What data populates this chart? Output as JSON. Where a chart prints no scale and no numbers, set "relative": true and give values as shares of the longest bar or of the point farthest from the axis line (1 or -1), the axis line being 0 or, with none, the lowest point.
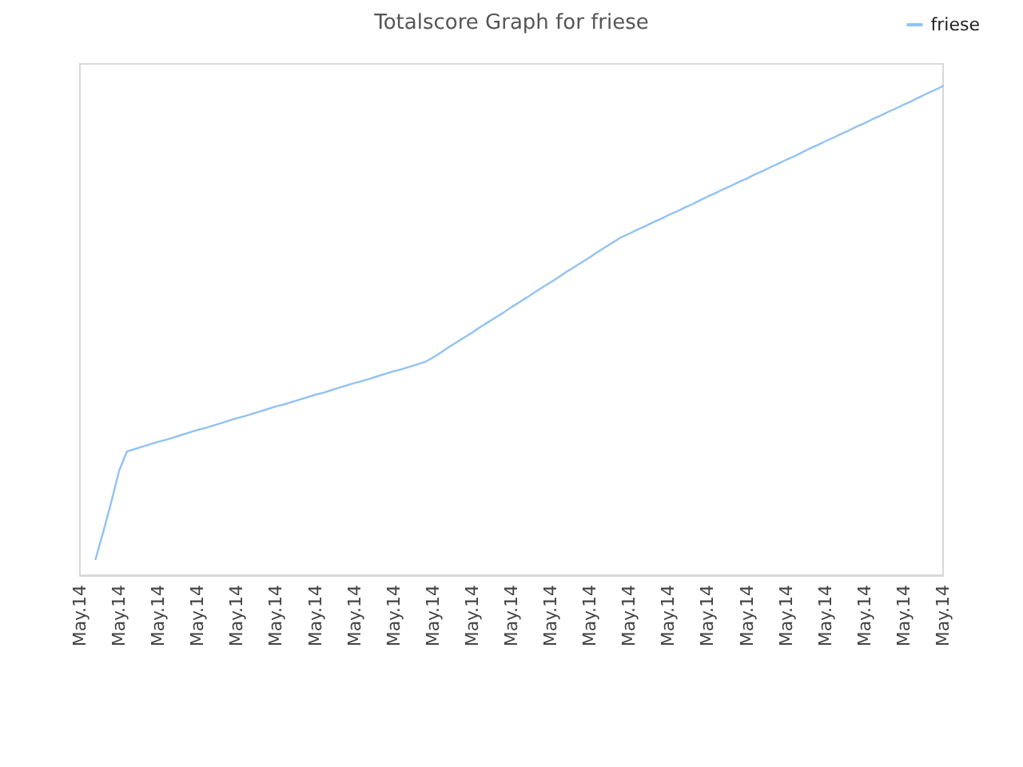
{
  "chart_data": {
    "type": "line",
    "title": "Totalscore Graph for friese",
    "relative": true,
    "legend": "top right",
    "categories": [
      "May.14",
      null,
      null,
      null,
      null,
      "May.14",
      null,
      null,
      null,
      null,
      "May.14",
      null,
      null,
      null,
      null,
      "May.14",
      null,
      null,
      null,
      null,
      "May.14",
      null,
      null,
      null,
      null,
      "May.14",
      null,
      null,
      null,
      null,
      "May.14",
      null,
      null,
      null,
      null,
      "May.14",
      null,
      null,
      null,
      null,
      "May.14",
      null,
      null,
      null,
      null,
      "May.14",
      null,
      null,
      null,
      null,
      "May.14",
      null,
      null,
      null,
      null,
      "May.14",
      null,
      null,
      null,
      null,
      "May.14",
      null,
      null,
      null,
      null,
      "May.14",
      null,
      null,
      null,
      null,
      "May.14",
      null,
      null,
      null,
      null,
      "May.14",
      null,
      null,
      null,
      null,
      "May.14",
      null,
      null,
      null,
      null,
      "May.14",
      null,
      null,
      null,
      null,
      "May.14",
      null,
      null,
      null,
      null,
      "May.14",
      null,
      null,
      null,
      null,
      "May.14",
      null,
      null,
      null,
      null,
      "May.14",
      null,
      null,
      null,
      null,
      "May.14"
    ],
    "series": [
      {
        "name": "friese",
        "color": "#92c2f2",
        "values": [
          null,
          null,
          0.033,
          0.09,
          0.15,
          0.214,
          0.253,
          0.258,
          0.263,
          0.268,
          0.273,
          0.277,
          0.282,
          0.287,
          0.292,
          0.297,
          0.301,
          0.306,
          0.311,
          0.316,
          0.321,
          0.325,
          0.33,
          0.335,
          0.34,
          0.345,
          0.349,
          0.354,
          0.359,
          0.364,
          0.369,
          0.373,
          0.378,
          0.383,
          0.388,
          0.393,
          0.397,
          0.402,
          0.407,
          0.412,
          0.417,
          0.421,
          0.426,
          0.431,
          0.436,
          0.445,
          0.455,
          0.466,
          0.476,
          0.486,
          0.496,
          0.507,
          0.517,
          0.527,
          0.537,
          0.548,
          0.558,
          0.568,
          0.579,
          0.589,
          0.599,
          0.609,
          0.62,
          0.63,
          0.64,
          0.65,
          0.661,
          0.671,
          0.681,
          0.691,
          0.698,
          0.706,
          0.713,
          0.721,
          0.728,
          0.736,
          0.743,
          0.751,
          0.758,
          0.766,
          0.774,
          0.781,
          0.789,
          0.796,
          0.804,
          0.811,
          0.819,
          0.826,
          0.834,
          0.841,
          0.849,
          0.856,
          0.864,
          0.872,
          0.879,
          0.887,
          0.894,
          0.902,
          0.909,
          0.917,
          0.924,
          0.932,
          0.939,
          0.947,
          0.954,
          0.962,
          0.969,
          0.977,
          0.985,
          0.992,
          1
        ]
      }
    ]
  }
}
